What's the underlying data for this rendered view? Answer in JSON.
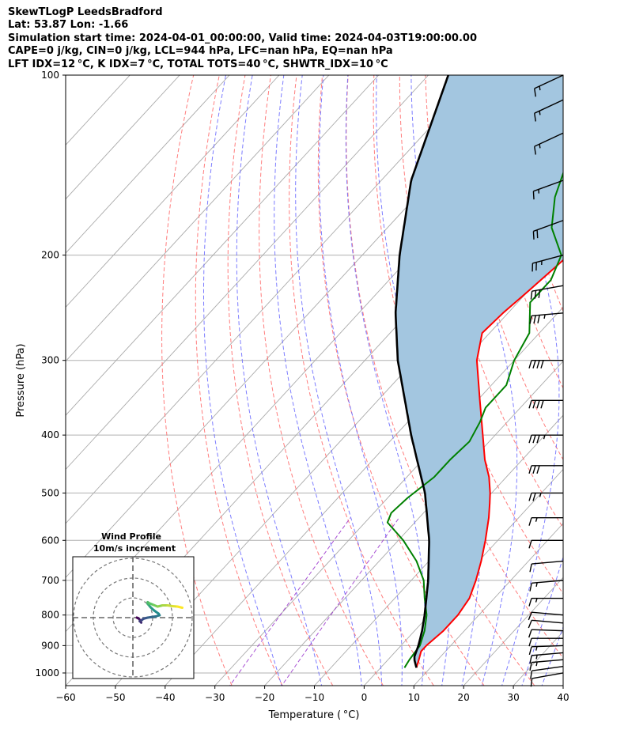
{
  "header": {
    "title": "SkewTLogP LeedsBradford",
    "location": "Lat: 53.87   Lon: -1.66",
    "times": "Simulation start time: 2024-04-01_00:00:00, Valid time: 2024-04-03T19:00:00.00",
    "indices1": "CAPE=0 j/kg, CIN=0 j/kg, LCL=944 hPa, LFC=nan hPa, EQ=nan hPa",
    "indices2": "LFT IDX=12 °C, K IDX=7 °C, TOTAL TOTS=40 °C, SHWTR_IDX=10 °C"
  },
  "chart_data": {
    "type": "line",
    "xlabel": "Temperature ( °C)",
    "ylabel": "Pressure (hPa)",
    "xlim": [
      -60,
      40
    ],
    "ylim": [
      1050,
      100
    ],
    "yscale": "log",
    "xticks": [
      -60,
      -50,
      -40,
      -30,
      -20,
      -10,
      0,
      10,
      20,
      30,
      40
    ],
    "yticks": [
      100,
      200,
      300,
      400,
      500,
      600,
      700,
      800,
      900,
      1000
    ],
    "grid": true,
    "colors": {
      "temperature": "#ff0000",
      "dewpoint": "#008000",
      "parcel": "#000000",
      "cape_fill": "#a3c6e0",
      "dry_adiabats": "#ff6666",
      "moist_adiabats": "#6666ff",
      "mixing_ratio": "#9933cc",
      "isotherms": "#aaaaaa"
    },
    "series": [
      {
        "key": "temperature",
        "pressure": [
          980,
          950,
          920,
          900,
          850,
          800,
          750,
          700,
          650,
          600,
          550,
          520,
          500,
          470,
          440,
          400,
          350,
          300,
          270,
          250,
          230,
          220,
          210,
          200,
          190,
          180,
          170,
          160,
          150,
          140,
          130,
          120,
          110,
          100
        ],
        "values": [
          7.2,
          6.2,
          5.1,
          5.1,
          5.8,
          5.8,
          5.0,
          3.0,
          0.5,
          -2.5,
          -6.0,
          -8.5,
          -10.3,
          -13.5,
          -17.5,
          -22.5,
          -29.5,
          -37.5,
          -41.5,
          -41.0,
          -40.0,
          -39.5,
          -39.0,
          -38.5,
          -38.5,
          -39.0,
          -39.5,
          -40.5,
          -41.5,
          -42.0,
          -42.5,
          -42.5,
          -42.5,
          -43.0
        ]
      },
      {
        "key": "dewpoint",
        "pressure": [
          980,
          950,
          920,
          900,
          850,
          800,
          750,
          700,
          650,
          600,
          560,
          540,
          510,
          470,
          440,
          410,
          380,
          360,
          330,
          300,
          270,
          240,
          220,
          200,
          180,
          160,
          140,
          120,
          100
        ],
        "values": [
          4.8,
          4.3,
          4.0,
          3.8,
          2.0,
          -0.5,
          -4.0,
          -7.5,
          -12.5,
          -19.0,
          -25.5,
          -26.5,
          -26.0,
          -24.5,
          -24.5,
          -24.0,
          -25.5,
          -27.0,
          -27.0,
          -30.0,
          -32.0,
          -37.5,
          -37.5,
          -40.0,
          -47.0,
          -52.0,
          -56.0,
          -59.0,
          -62.0
        ]
      },
      {
        "key": "parcel",
        "pressure": [
          980,
          944,
          900,
          850,
          800,
          700,
          600,
          500,
          400,
          300,
          250,
          200,
          150,
          100
        ],
        "values": [
          7.2,
          4.9,
          3.5,
          1.5,
          -0.9,
          -6.6,
          -13.8,
          -23.4,
          -36.9,
          -53.4,
          -62.6,
          -72.5,
          -84.0,
          -96.0
        ]
      }
    ],
    "wind_barbs": {
      "pressure": [
        1000,
        975,
        950,
        925,
        900,
        875,
        850,
        825,
        800,
        750,
        700,
        650,
        600,
        550,
        500,
        450,
        400,
        350,
        300,
        250,
        225,
        200,
        175,
        150,
        125,
        110,
        100
      ],
      "speed_kt": [
        12,
        14,
        15,
        16,
        15,
        14,
        13,
        12,
        10,
        15,
        15,
        12,
        12,
        15,
        25,
        30,
        35,
        40,
        40,
        35,
        30,
        25,
        20,
        15,
        15,
        15,
        15
      ],
      "direction_deg": [
        260,
        262,
        265,
        265,
        268,
        270,
        272,
        275,
        275,
        270,
        265,
        265,
        270,
        270,
        270,
        270,
        270,
        270,
        270,
        265,
        260,
        255,
        250,
        250,
        245,
        245,
        245
      ]
    },
    "hodograph": {
      "title": "Wind Profile",
      "subtitle": "10m/s increment",
      "ring_step_ms": 10,
      "u": [
        2.0,
        3.0,
        3.8,
        4.2,
        3.5,
        4.5,
        5.5,
        7.5,
        9.5,
        11.5,
        13.5,
        13.0,
        10.5,
        9.0,
        8.0,
        7.5,
        7.5,
        8.5,
        10.5,
        12.5,
        15.0,
        17.5,
        20.0,
        22.5,
        25.0
      ],
      "v": [
        0.0,
        -0.5,
        -1.5,
        -2.5,
        -1.8,
        -1.2,
        -0.5,
        0.0,
        0.3,
        0.6,
        1.2,
        2.0,
        3.8,
        5.2,
        6.4,
        7.0,
        7.8,
        7.2,
        6.4,
        5.6,
        6.2,
        6.2,
        5.8,
        5.6,
        5.0
      ]
    }
  }
}
